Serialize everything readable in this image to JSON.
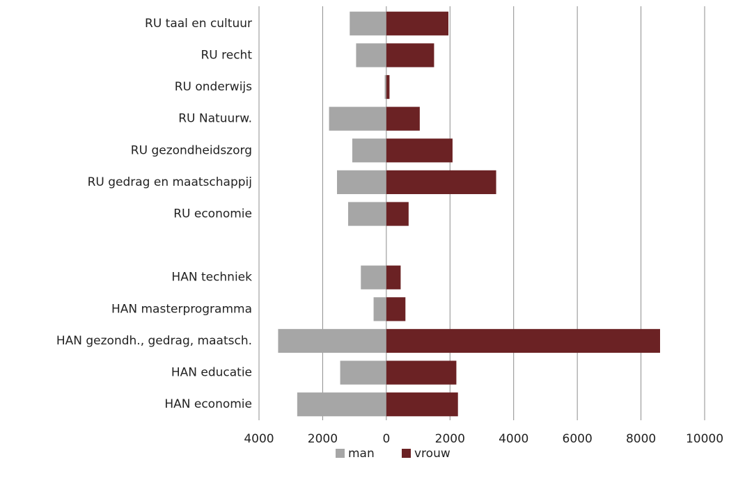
{
  "chart_data": {
    "type": "bar",
    "orientation": "horizontal",
    "categories": [
      "RU taal en cultuur",
      "RU recht",
      "RU onderwijs",
      "RU Natuurw.",
      "RU gezondheidszorg",
      "RU gedrag en maatschappij",
      "RU economie",
      null,
      "HAN techniek",
      "HAN masterprogramma",
      "HAN gezondh., gedrag, maatsch.",
      "HAN educatie",
      "HAN economie"
    ],
    "series": [
      {
        "name": "man",
        "color": "#a6a6a6",
        "values": [
          -1150,
          -950,
          -50,
          -1800,
          -1070,
          -1550,
          -1200,
          null,
          -800,
          -400,
          -3400,
          -1450,
          -2800
        ]
      },
      {
        "name": "vrouw",
        "color": "#6b2224",
        "values": [
          1950,
          1500,
          100,
          1050,
          2080,
          3450,
          700,
          null,
          450,
          600,
          8600,
          2200,
          2250
        ]
      }
    ],
    "xlim": [
      -4000,
      10000
    ],
    "xticks": [
      {
        "value": -4000,
        "label": "4000"
      },
      {
        "value": -2000,
        "label": "2000"
      },
      0,
      2000,
      4000,
      6000,
      8000,
      10000
    ],
    "grid": true,
    "legend": "bottom"
  }
}
